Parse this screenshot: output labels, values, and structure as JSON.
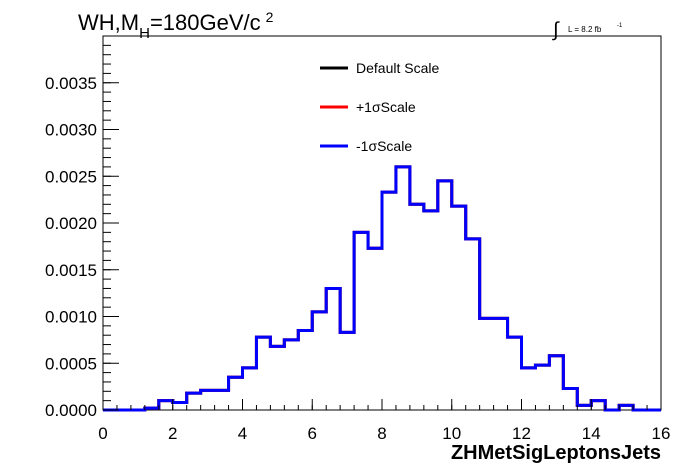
{
  "chart_data": {
    "type": "line",
    "title": "WH,M",
    "title_sub": "H",
    "title_rest": "=180GeV/c",
    "title_sup": "2",
    "lumi_label": "L = 8.2 fb",
    "lumi_sup": "-1",
    "xlabel": "ZHMetSigLeptonsJets",
    "ylabel": "",
    "xlim": [
      0,
      16
    ],
    "ylim": [
      0,
      0.004
    ],
    "x_ticks": [
      "0",
      "2",
      "4",
      "6",
      "8",
      "10",
      "12",
      "14",
      "16"
    ],
    "y_ticks": [
      "0.0000",
      "0.0005",
      "0.0010",
      "0.0015",
      "0.0020",
      "0.0025",
      "0.0030",
      "0.0035"
    ],
    "bin_edges": [
      0,
      0.4,
      0.8,
      1.2,
      1.6,
      2.0,
      2.4,
      2.8,
      3.2,
      3.6,
      4.0,
      4.4,
      4.8,
      5.2,
      5.6,
      6.0,
      6.4,
      6.8,
      7.2,
      7.6,
      8.0,
      8.4,
      8.8,
      9.2,
      9.6,
      10.0,
      10.4,
      10.8,
      11.2,
      11.6,
      12.0,
      12.4,
      12.8,
      13.2,
      13.6,
      14.0,
      14.4,
      14.8,
      15.2,
      15.6,
      16.0
    ],
    "legend": [
      {
        "name": "Default Scale",
        "color": "#000000"
      },
      {
        "name": "+1σScale",
        "color": "#ff0000"
      },
      {
        "name": "-1σScale",
        "color": "#0000ff"
      }
    ],
    "series": [
      {
        "name": "Default Scale",
        "color": "#000000",
        "values": [
          0,
          0,
          0,
          2e-05,
          0.0001,
          8e-05,
          0.00018,
          0.00021,
          0.00021,
          0.00035,
          0.00045,
          0.00078,
          0.00068,
          0.00075,
          0.00085,
          0.00105,
          0.0013,
          0.00083,
          0.0019,
          0.00173,
          0.00233,
          0.0026,
          0.0022,
          0.00213,
          0.00245,
          0.00218,
          0.00183,
          0.00098,
          0.00098,
          0.00078,
          0.00045,
          0.00048,
          0.00058,
          0.00023,
          5e-05,
          0.0001,
          0,
          5e-05,
          0,
          0,
          0
        ]
      },
      {
        "name": "+1σScale",
        "color": "#ff0000",
        "values": [
          0,
          0,
          0,
          2e-05,
          0.0001,
          8e-05,
          0.00018,
          0.00021,
          0.00021,
          0.00035,
          0.00045,
          0.00078,
          0.00068,
          0.00075,
          0.00085,
          0.00105,
          0.0013,
          0.00083,
          0.0019,
          0.00173,
          0.00233,
          0.0026,
          0.0022,
          0.00213,
          0.00245,
          0.00218,
          0.00183,
          0.00098,
          0.00098,
          0.00078,
          0.00045,
          0.00048,
          0.00058,
          0.00023,
          5e-05,
          0.0001,
          0,
          5e-05,
          0,
          0,
          0
        ]
      },
      {
        "name": "-1σScale",
        "color": "#0000ff",
        "values": [
          0,
          0,
          0,
          2e-05,
          0.0001,
          8e-05,
          0.00018,
          0.00021,
          0.00021,
          0.00035,
          0.00045,
          0.00078,
          0.00068,
          0.00075,
          0.00085,
          0.00105,
          0.0013,
          0.00083,
          0.0019,
          0.00173,
          0.00233,
          0.0026,
          0.0022,
          0.00213,
          0.00245,
          0.00218,
          0.00183,
          0.00098,
          0.00098,
          0.00078,
          0.00045,
          0.00048,
          0.00058,
          0.00023,
          5e-05,
          0.0001,
          0,
          5e-05,
          0,
          0,
          0
        ]
      }
    ]
  }
}
